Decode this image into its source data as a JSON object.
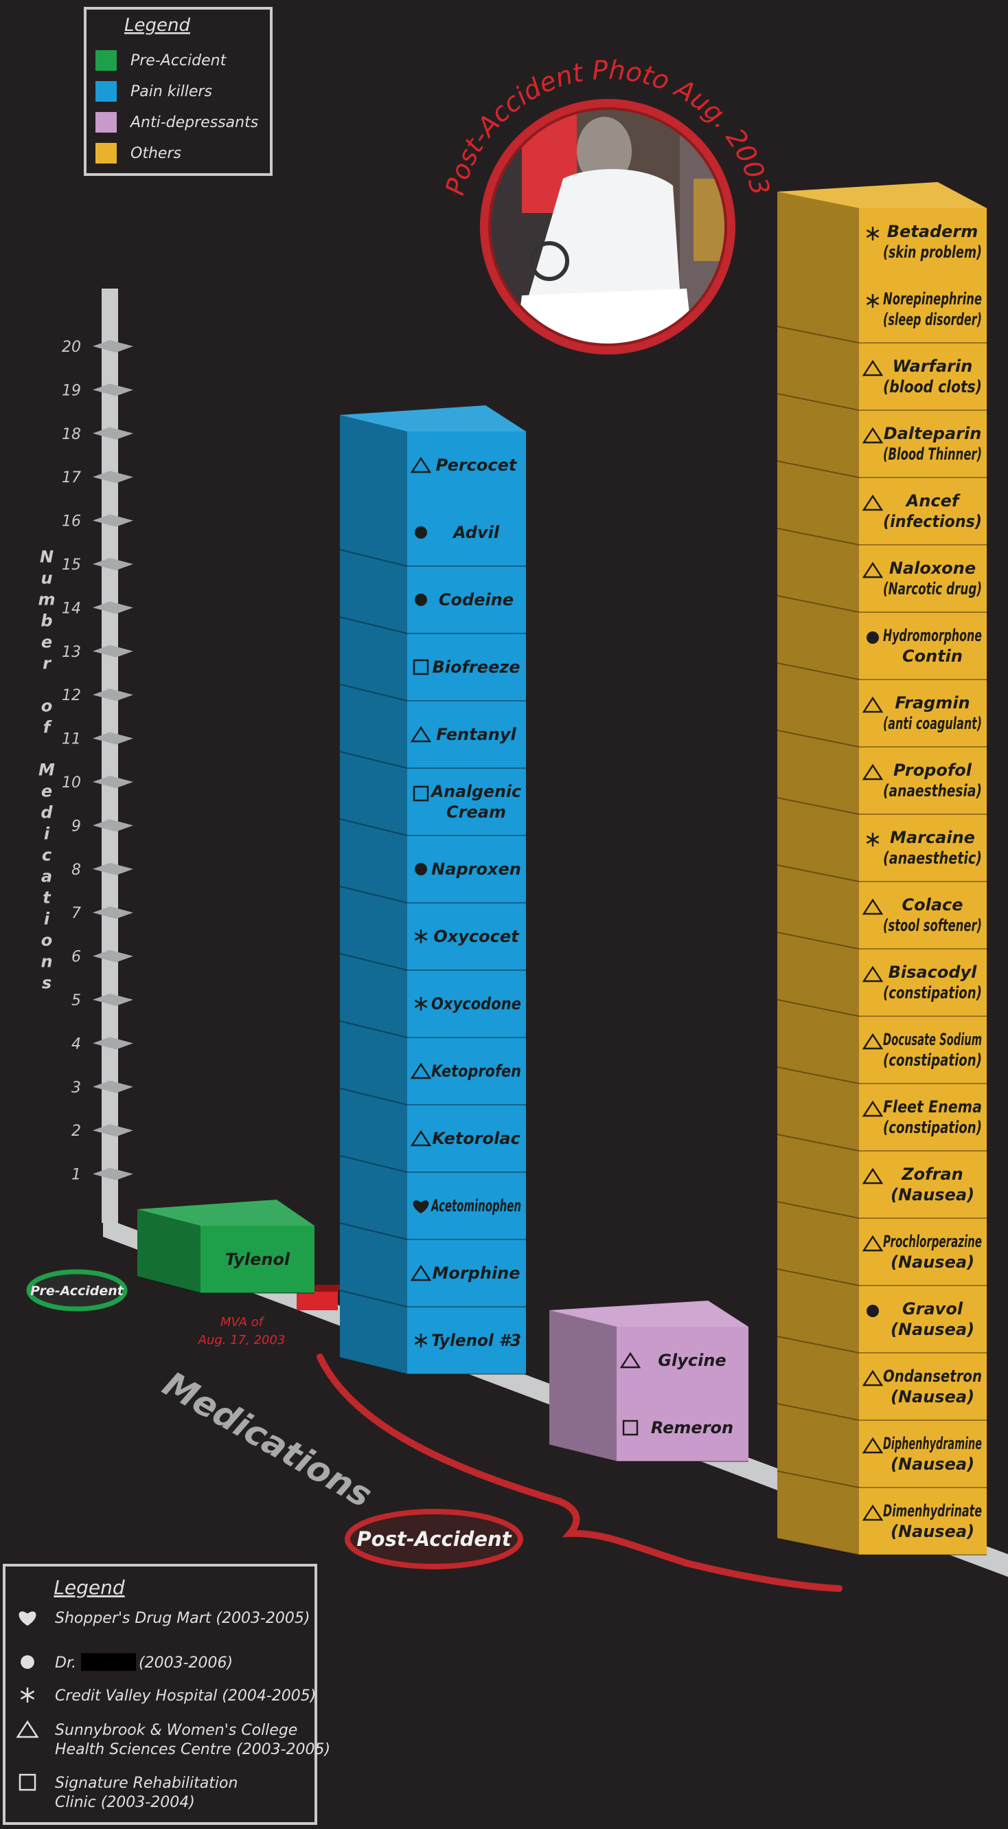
{
  "chart_data": {
    "type": "block-bar",
    "ylabel": "Number of Medications",
    "xlabel": "Medications",
    "ylim": [
      0,
      20
    ],
    "yticks": [
      1,
      2,
      3,
      4,
      5,
      6,
      7,
      8,
      9,
      10,
      11,
      12,
      13,
      14,
      15,
      16,
      17,
      18,
      19,
      20
    ],
    "legend_title": "Legend",
    "series": [
      {
        "name": "Pre-Accident",
        "color": "#1ea04a",
        "value": 1,
        "items": [
          {
            "lines": [
              "Tylenol"
            ]
          }
        ]
      },
      {
        "name": "Pain killers",
        "color": "#1a9ad6",
        "value": 14,
        "items": [
          {
            "symbol": "asterisk",
            "lines": [
              "Tylenol #3"
            ]
          },
          {
            "symbol": "triangle",
            "lines": [
              "Morphine"
            ]
          },
          {
            "symbol": "heart",
            "lines": [
              "Acetominophen"
            ]
          },
          {
            "symbol": "triangle",
            "lines": [
              "Ketorolac"
            ]
          },
          {
            "symbol": "triangle",
            "lines": [
              "Ketoprofen"
            ]
          },
          {
            "symbol": "asterisk",
            "lines": [
              "Oxycodone"
            ]
          },
          {
            "symbol": "asterisk",
            "lines": [
              "Oxycocet"
            ]
          },
          {
            "symbol": "circle",
            "lines": [
              "Naproxen"
            ]
          },
          {
            "symbol": "square",
            "lines": [
              "Analgenic",
              "Cream"
            ]
          },
          {
            "symbol": "triangle",
            "lines": [
              "Fentanyl"
            ]
          },
          {
            "symbol": "square",
            "lines": [
              "Biofreeze"
            ]
          },
          {
            "symbol": "circle",
            "lines": [
              "Codeine"
            ]
          },
          {
            "symbol": "circle",
            "lines": [
              "Advil"
            ]
          },
          {
            "symbol": "triangle",
            "lines": [
              "Percocet"
            ]
          }
        ]
      },
      {
        "name": "Anti-depressants",
        "color": "#c99bcb",
        "value": 2,
        "items": [
          {
            "symbol": "square",
            "lines": [
              "Remeron"
            ]
          },
          {
            "symbol": "triangle",
            "lines": [
              "Glycine"
            ]
          }
        ]
      },
      {
        "name": "Others",
        "color": "#e9b22e",
        "value": 20,
        "items": [
          {
            "symbol": "triangle",
            "lines": [
              "Dimenhydrinate",
              "(Nausea)"
            ]
          },
          {
            "symbol": "triangle",
            "lines": [
              "Diphenhydramine",
              "(Nausea)"
            ]
          },
          {
            "symbol": "triangle",
            "lines": [
              "Ondansetron",
              "(Nausea)"
            ]
          },
          {
            "symbol": "circle",
            "lines": [
              "Gravol",
              "(Nausea)"
            ]
          },
          {
            "symbol": "triangle",
            "lines": [
              "Prochlorperazine",
              "(Nausea)"
            ]
          },
          {
            "symbol": "triangle",
            "lines": [
              "Zofran",
              "(Nausea)"
            ]
          },
          {
            "symbol": "triangle",
            "lines": [
              "Fleet Enema",
              "(constipation)"
            ]
          },
          {
            "symbol": "triangle",
            "lines": [
              "Docusate Sodium",
              "(constipation)"
            ]
          },
          {
            "symbol": "triangle",
            "lines": [
              "Bisacodyl",
              "(constipation)"
            ]
          },
          {
            "symbol": "triangle",
            "lines": [
              "Colace",
              "(stool softener)"
            ]
          },
          {
            "symbol": "asterisk",
            "lines": [
              "Marcaine",
              "(anaesthetic)"
            ]
          },
          {
            "symbol": "triangle",
            "lines": [
              "Propofol",
              "(anaesthesia)"
            ]
          },
          {
            "symbol": "triangle",
            "lines": [
              "Fragmin",
              "(anti coagulant)"
            ]
          },
          {
            "symbol": "circle",
            "lines": [
              "Hydromorphone",
              "Contin"
            ]
          },
          {
            "symbol": "triangle",
            "lines": [
              "Naloxone",
              "(Narcotic drug)"
            ]
          },
          {
            "symbol": "triangle",
            "lines": [
              "Ancef",
              "(infections)"
            ]
          },
          {
            "symbol": "triangle",
            "lines": [
              "Dalteparin",
              "(Blood Thinner)"
            ]
          },
          {
            "symbol": "triangle",
            "lines": [
              "Warfarin",
              "(blood clots)"
            ]
          },
          {
            "symbol": "asterisk",
            "lines": [
              "Norepinephrine",
              "(sleep disorder)"
            ]
          },
          {
            "symbol": "asterisk",
            "lines": [
              "Betaderm",
              "(skin problem)"
            ]
          }
        ]
      }
    ],
    "annotations": {
      "pre_accident": "Pre-Accident",
      "post_accident": "Post-Accident",
      "mva": [
        "MVA of",
        "Aug. 17, 2003"
      ],
      "photo_title": "Post-Accident Photo Aug. 2003"
    },
    "source_legend": {
      "title": "Legend",
      "entries": [
        {
          "symbol": "heart",
          "lines": [
            "Shopper's Drug Mart (2003-2005)"
          ]
        },
        {
          "symbol": "circle",
          "lines": [
            "Dr.",
            "(2003-2006)"
          ]
        },
        {
          "symbol": "asterisk",
          "lines": [
            "Credit Valley Hospital (2004-2005)"
          ]
        },
        {
          "symbol": "triangle",
          "lines": [
            "Sunnybrook & Women's College",
            "Health Sciences Centre (2003-2005)"
          ]
        },
        {
          "symbol": "square",
          "lines": [
            "Signature Rehabilitation",
            "Clinic (2003-2004)"
          ]
        }
      ]
    }
  }
}
